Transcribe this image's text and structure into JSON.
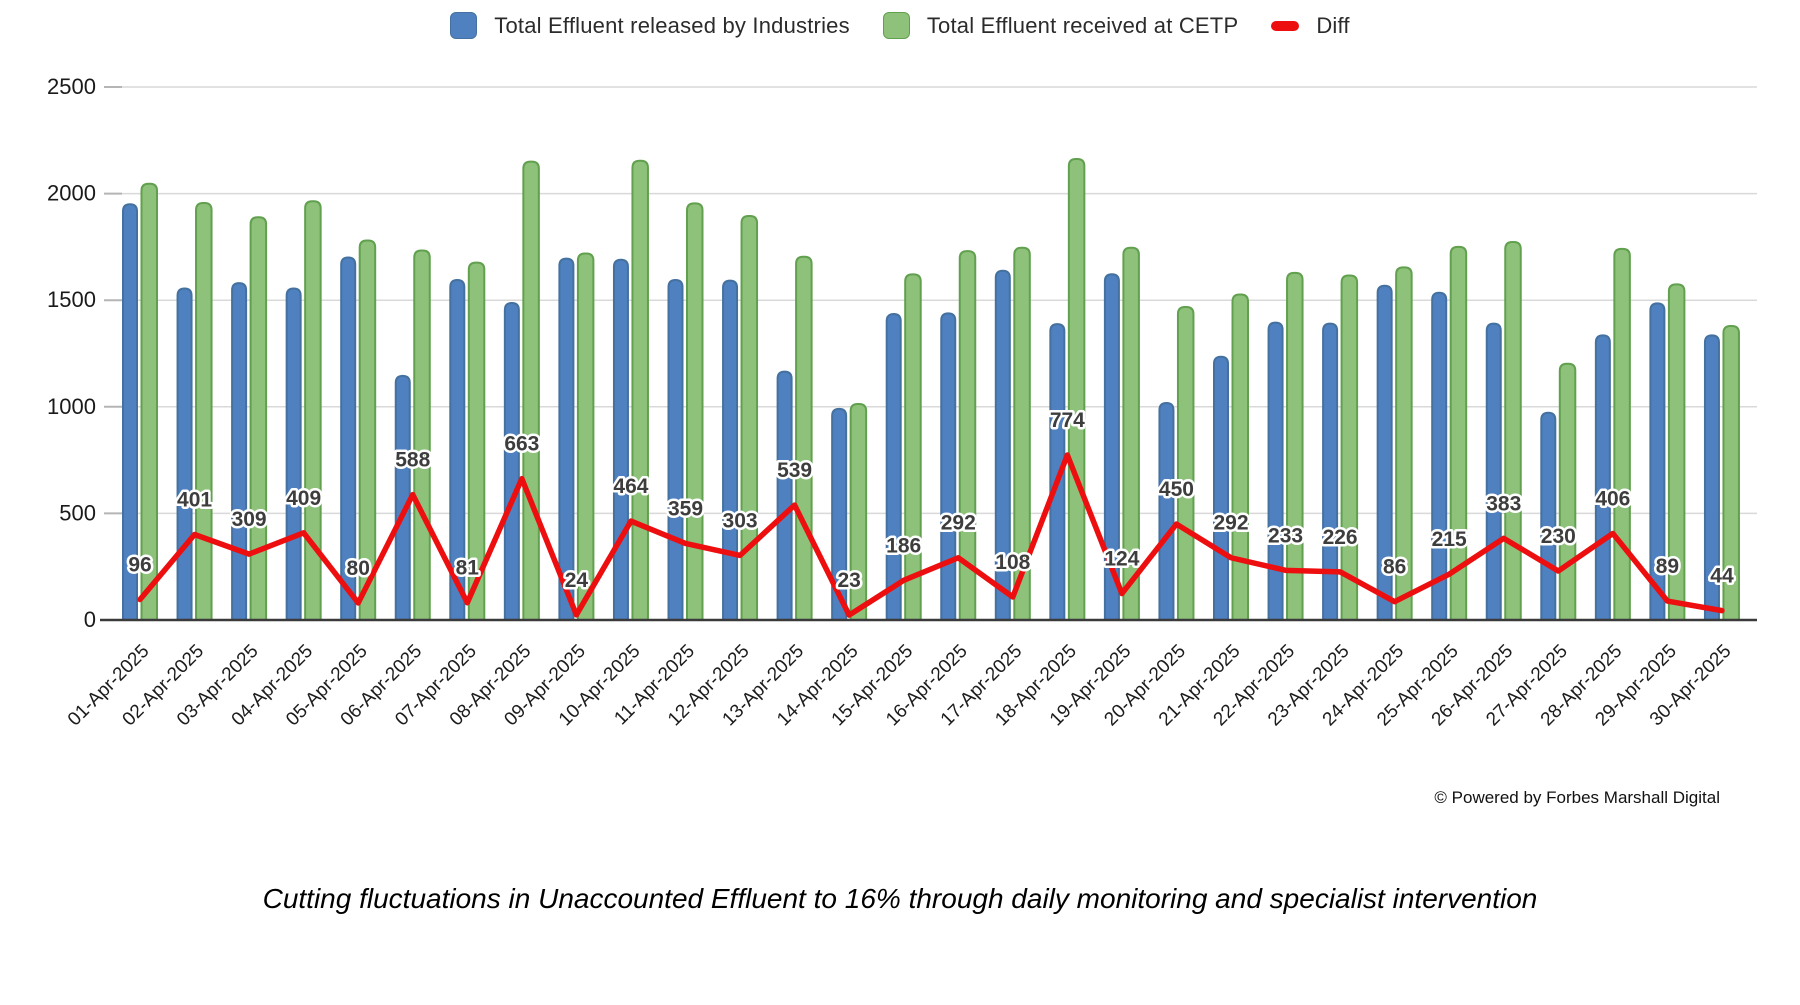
{
  "chart_data": {
    "type": "bar",
    "title": "",
    "xlabel": "",
    "ylabel": "",
    "ylim": [
      0,
      2500
    ],
    "yticks": [
      0,
      500,
      1000,
      1500,
      2000,
      2500
    ],
    "grid": true,
    "legend_position": "top",
    "categories": [
      "01-Apr-2025",
      "02-Apr-2025",
      "03-Apr-2025",
      "04-Apr-2025",
      "05-Apr-2025",
      "06-Apr-2025",
      "07-Apr-2025",
      "08-Apr-2025",
      "09-Apr-2025",
      "10-Apr-2025",
      "11-Apr-2025",
      "12-Apr-2025",
      "13-Apr-2025",
      "14-Apr-2025",
      "15-Apr-2025",
      "16-Apr-2025",
      "17-Apr-2025",
      "18-Apr-2025",
      "19-Apr-2025",
      "20-Apr-2025",
      "21-Apr-2025",
      "22-Apr-2025",
      "23-Apr-2025",
      "24-Apr-2025",
      "25-Apr-2025",
      "26-Apr-2025",
      "27-Apr-2025",
      "28-Apr-2025",
      "29-Apr-2025",
      "30-Apr-2025"
    ],
    "series": [
      {
        "name": "Total Effluent released by Industries",
        "type": "bar",
        "color": "#4f81c0",
        "border": "#44719f",
        "values": [
          1950,
          1555,
          1580,
          1555,
          1700,
          1145,
          1595,
          1487,
          1695,
          1690,
          1595,
          1592,
          1165,
          990,
          1435,
          1438,
          1638,
          1388,
          1622,
          1018,
          1235,
          1395,
          1390,
          1568,
          1535,
          1390,
          972,
          1335,
          1485,
          1335
        ]
      },
      {
        "name": "Total Effluent received at CETP",
        "type": "bar",
        "color": "#8ec27b",
        "border": "#61a04e",
        "values": [
          2046,
          1956,
          1889,
          1964,
          1780,
          1733,
          1676,
          2150,
          1719,
          2154,
          1954,
          1895,
          1704,
          1013,
          1621,
          1730,
          1746,
          2162,
          1746,
          1468,
          1527,
          1628,
          1616,
          1654,
          1750,
          1773,
          1202,
          1741,
          1574,
          1379
        ]
      },
      {
        "name": "Diff",
        "type": "line",
        "color": "#ed0f0f",
        "data_labels": true,
        "values": [
          96,
          401,
          309,
          409,
          80,
          588,
          81,
          663,
          24,
          464,
          359,
          303,
          539,
          23,
          186,
          292,
          108,
          774,
          124,
          450,
          292,
          233,
          226,
          86,
          215,
          383,
          230,
          406,
          89,
          44
        ]
      }
    ]
  },
  "footer": {
    "copyright": "© Powered by Forbes Marshall Digital"
  },
  "caption": {
    "text": "Cutting fluctuations in Unaccounted Effluent to 16% through daily monitoring and specialist intervention"
  }
}
